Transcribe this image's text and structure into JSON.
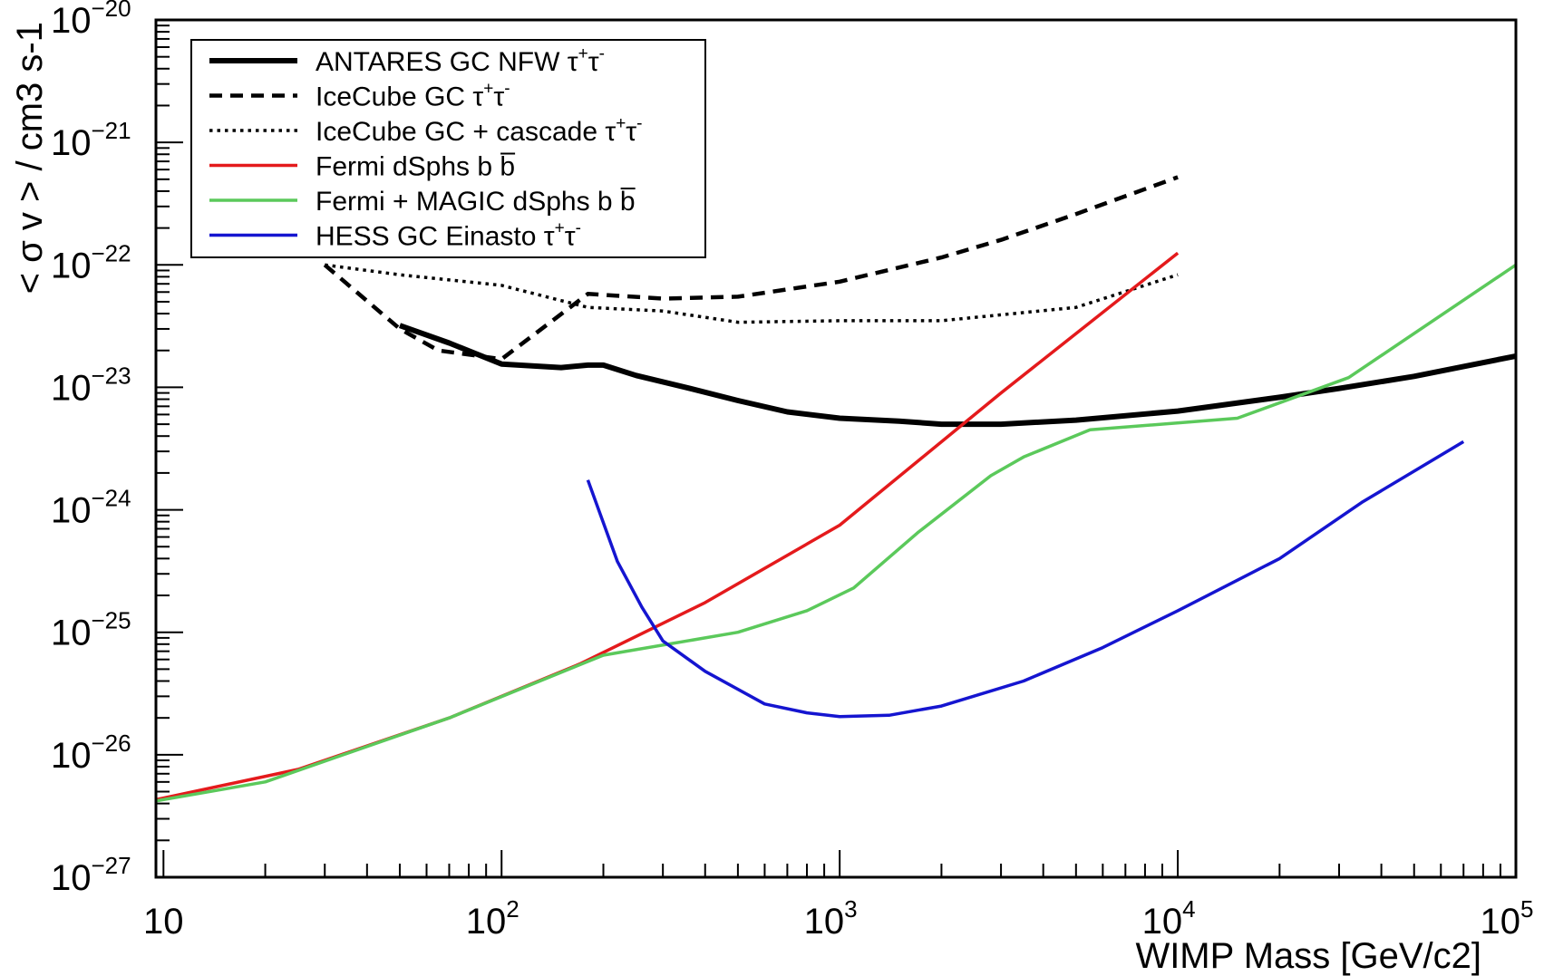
{
  "chart_data": {
    "type": "line",
    "title": "",
    "xlabel": "WIMP Mass [GeV/c2]",
    "ylabel": "< σ v > / cm3 s-1",
    "x_scale": "log",
    "y_scale": "log",
    "xlim": [
      9.5,
      100000
    ],
    "ylim": [
      1e-27,
      1e-20
    ],
    "x_ticks": [
      {
        "value": 10,
        "base": "10",
        "exp": ""
      },
      {
        "value": 100,
        "base": "10",
        "exp": "2"
      },
      {
        "value": 1000,
        "base": "10",
        "exp": "3"
      },
      {
        "value": 10000,
        "base": "10",
        "exp": "4"
      },
      {
        "value": 100000,
        "base": "10",
        "exp": "5"
      }
    ],
    "y_ticks": [
      {
        "value": 1e-20,
        "base": "10",
        "exp": "−20"
      },
      {
        "value": 1e-21,
        "base": "10",
        "exp": "−21"
      },
      {
        "value": 1e-22,
        "base": "10",
        "exp": "−22"
      },
      {
        "value": 1e-23,
        "base": "10",
        "exp": "−23"
      },
      {
        "value": 1e-24,
        "base": "10",
        "exp": "−24"
      },
      {
        "value": 1e-25,
        "base": "10",
        "exp": "−25"
      },
      {
        "value": 1e-26,
        "base": "10",
        "exp": "−26"
      },
      {
        "value": 1e-27,
        "base": "10",
        "exp": "−27"
      }
    ],
    "grid": false,
    "legend_position": "top-left",
    "series": [
      {
        "name": "ANTARES GC NFW τ+τ-",
        "legend_main": "ANTARES GC NFW τ",
        "legend_sup1": "+",
        "legend_mid": "τ",
        "legend_sup2": "-",
        "color": "#000000",
        "style": "solid-thick",
        "points": [
          [
            50,
            3.2e-23
          ],
          [
            70,
            2.3e-23
          ],
          [
            100,
            1.55e-23
          ],
          [
            150,
            1.45e-23
          ],
          [
            180,
            1.52e-23
          ],
          [
            200,
            1.52e-23
          ],
          [
            250,
            1.25e-23
          ],
          [
            350,
            1e-23
          ],
          [
            500,
            7.8e-24
          ],
          [
            700,
            6.3e-24
          ],
          [
            1000,
            5.6e-24
          ],
          [
            1500,
            5.3e-24
          ],
          [
            2000,
            5e-24
          ],
          [
            3000,
            5e-24
          ],
          [
            5000,
            5.4e-24
          ],
          [
            10000,
            6.4e-24
          ],
          [
            20000,
            8.3e-24
          ],
          [
            30000,
            9.8e-24
          ],
          [
            50000,
            1.23e-23
          ],
          [
            100000,
            1.8e-23
          ]
        ]
      },
      {
        "name": "IceCube GC τ+τ-",
        "legend_main": "IceCube GC τ",
        "legend_sup1": "+",
        "legend_mid": "τ",
        "legend_sup2": "-",
        "color": "#000000",
        "style": "dashed",
        "points": [
          [
            30,
            1e-22
          ],
          [
            50,
            3e-23
          ],
          [
            65,
            2e-23
          ],
          [
            80,
            1.85e-23
          ],
          [
            100,
            1.7e-23
          ],
          [
            180,
            5.8e-23
          ],
          [
            300,
            5.3e-23
          ],
          [
            500,
            5.5e-23
          ],
          [
            1000,
            7.3e-23
          ],
          [
            2000,
            1.15e-22
          ],
          [
            3000,
            1.6e-22
          ],
          [
            5000,
            2.6e-22
          ],
          [
            10000,
            5.2e-22
          ]
        ]
      },
      {
        "name": "IceCube GC + cascade τ+τ-",
        "legend_main": "IceCube GC + cascade τ",
        "legend_sup1": "+",
        "legend_mid": "τ",
        "legend_sup2": "-",
        "color": "#000000",
        "style": "dotted",
        "points": [
          [
            30,
            1e-22
          ],
          [
            50,
            8.3e-23
          ],
          [
            100,
            6.8e-23
          ],
          [
            180,
            4.5e-23
          ],
          [
            300,
            4.2e-23
          ],
          [
            500,
            3.4e-23
          ],
          [
            1000,
            3.5e-23
          ],
          [
            2000,
            3.5e-23
          ],
          [
            5000,
            4.5e-23
          ],
          [
            10000,
            8.3e-23
          ]
        ]
      },
      {
        "name": "Fermi dSphs b b̄",
        "legend_main": "Fermi dSphs b b",
        "legend_sup1": "",
        "legend_mid": "",
        "legend_sup2": "",
        "color": "#e41a1c",
        "style": "solid",
        "points": [
          [
            9.5,
            4.3e-27
          ],
          [
            25,
            7.6e-27
          ],
          [
            70,
            2e-26
          ],
          [
            170,
            5.5e-26
          ],
          [
            400,
            1.75e-25
          ],
          [
            1000,
            7.5e-25
          ],
          [
            3000,
            9e-24
          ],
          [
            10000,
            1.25e-22
          ]
        ]
      },
      {
        "name": "Fermi + MAGIC dSphs b b̄",
        "legend_main": "Fermi + MAGIC dSphs b b",
        "legend_sup1": "",
        "legend_mid": "",
        "legend_sup2": "",
        "color": "#5bc95b",
        "style": "solid",
        "points": [
          [
            9.5,
            4.2e-27
          ],
          [
            20,
            6e-27
          ],
          [
            70,
            2e-26
          ],
          [
            200,
            6.5e-26
          ],
          [
            500,
            1e-25
          ],
          [
            800,
            1.5e-25
          ],
          [
            1100,
            2.3e-25
          ],
          [
            1700,
            6.5e-25
          ],
          [
            2800,
            1.9e-24
          ],
          [
            3500,
            2.7e-24
          ],
          [
            5500,
            4.5e-24
          ],
          [
            15000,
            5.6e-24
          ],
          [
            32000,
            1.2e-23
          ],
          [
            100000,
            1e-22
          ]
        ]
      },
      {
        "name": "HESS GC Einasto τ+τ-",
        "legend_main": "HESS GC Einasto τ",
        "legend_sup1": "+",
        "legend_mid": "τ",
        "legend_sup2": "-",
        "color": "#1515d0",
        "style": "solid",
        "points": [
          [
            180,
            1.75e-24
          ],
          [
            220,
            3.8e-25
          ],
          [
            260,
            1.6e-25
          ],
          [
            300,
            8.5e-26
          ],
          [
            400,
            4.8e-26
          ],
          [
            600,
            2.6e-26
          ],
          [
            800,
            2.2e-26
          ],
          [
            1000,
            2.05e-26
          ],
          [
            1400,
            2.1e-26
          ],
          [
            2000,
            2.5e-26
          ],
          [
            3500,
            4e-26
          ],
          [
            6000,
            7.5e-26
          ],
          [
            10000,
            1.5e-25
          ],
          [
            20000,
            4e-25
          ],
          [
            35000,
            1.15e-24
          ],
          [
            70000,
            3.6e-24
          ]
        ]
      }
    ]
  }
}
